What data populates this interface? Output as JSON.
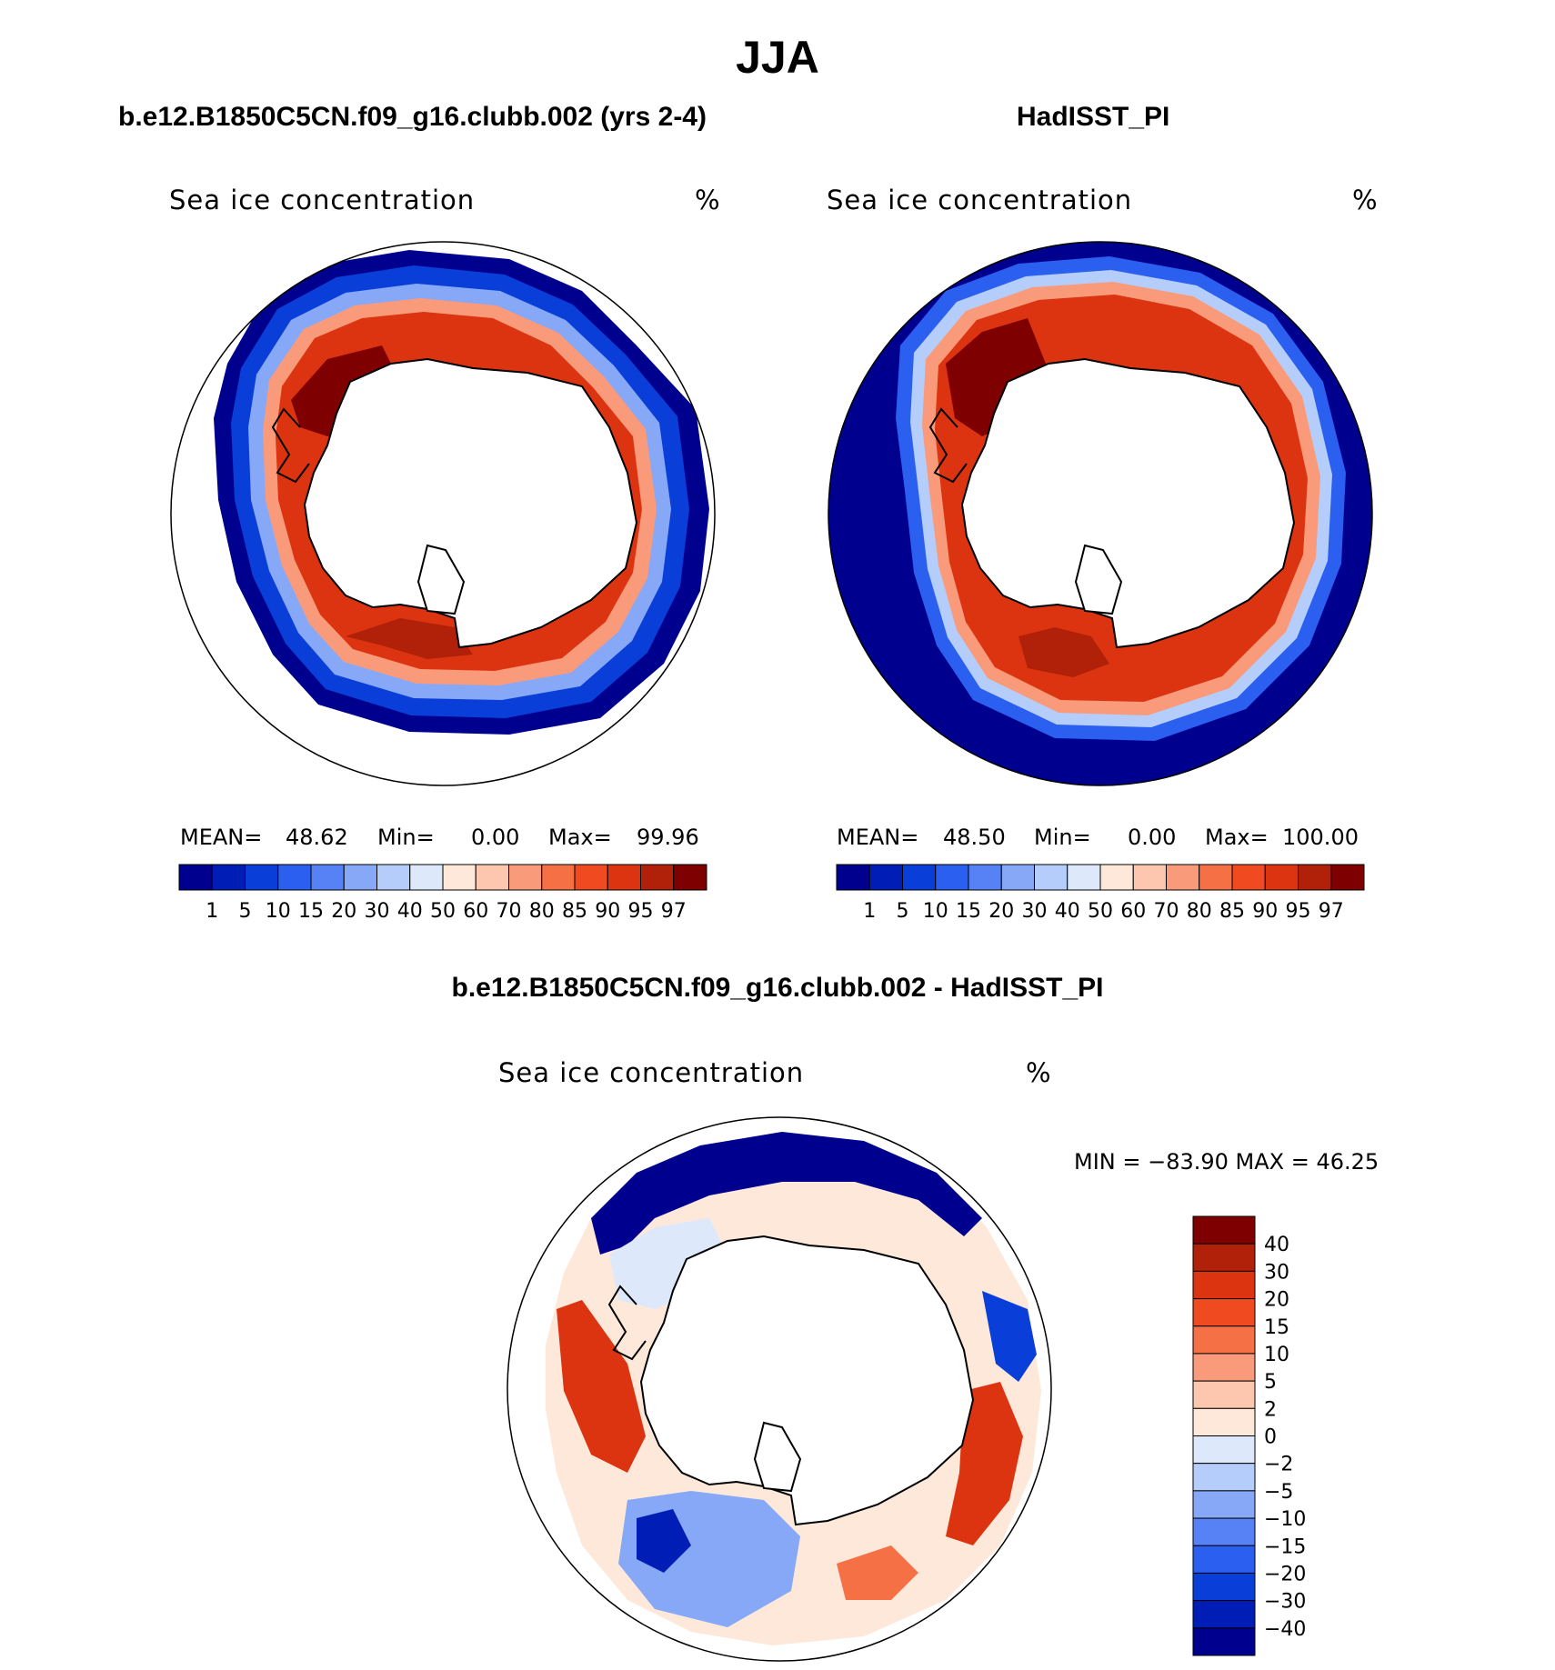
{
  "title": "JJA",
  "panels": [
    {
      "case": "b.e12.B1850C5CN.f09_g16.clubb.002 (yrs 2-4)",
      "variable": "Sea ice concentration",
      "units": "%",
      "stats": {
        "mean_label": "MEAN=",
        "mean": "48.62",
        "min_label": "Min=",
        "min": "0.00",
        "max_label": "Max=",
        "max": "99.96"
      }
    },
    {
      "case": "HadISST_PI",
      "variable": "Sea ice concentration",
      "units": "%",
      "stats": {
        "mean_label": "MEAN=",
        "mean": "48.50",
        "min_label": "Min=",
        "min": "0.00",
        "max_label": "Max=",
        "max": "100.00"
      }
    }
  ],
  "difference": {
    "title": "b.e12.B1850C5CN.f09_g16.clubb.002 - HadISST_PI",
    "variable": "Sea ice concentration",
    "units": "%",
    "minmax": "MIN = −83.90 MAX =   46.25"
  },
  "colorbar_concentration": {
    "labels": [
      "1",
      "5",
      "10",
      "15",
      "20",
      "30",
      "40",
      "50",
      "60",
      "70",
      "80",
      "85",
      "90",
      "95",
      "97"
    ],
    "colors": [
      "#00008f",
      "#001eb5",
      "#0a3ed8",
      "#2a5ff0",
      "#5682f5",
      "#86a8f7",
      "#b5cdfb",
      "#dde9fb",
      "#fde8da",
      "#fcc7ae",
      "#f99b7a",
      "#f57045",
      "#f04a20",
      "#dc3410",
      "#b12008",
      "#7e0000"
    ]
  },
  "colorbar_difference": {
    "labels": [
      "40",
      "30",
      "20",
      "15",
      "10",
      "5",
      "2",
      "0",
      "−2",
      "−5",
      "−10",
      "−15",
      "−20",
      "−30",
      "−40"
    ],
    "colors": [
      "#7e0000",
      "#b12008",
      "#dc3410",
      "#f04a20",
      "#f57045",
      "#f99b7a",
      "#fcc7ae",
      "#fde8da",
      "#dde9fb",
      "#b5cdfb",
      "#86a8f7",
      "#5682f5",
      "#2a5ff0",
      "#0a3ed8",
      "#001eb5",
      "#00008f"
    ]
  }
}
